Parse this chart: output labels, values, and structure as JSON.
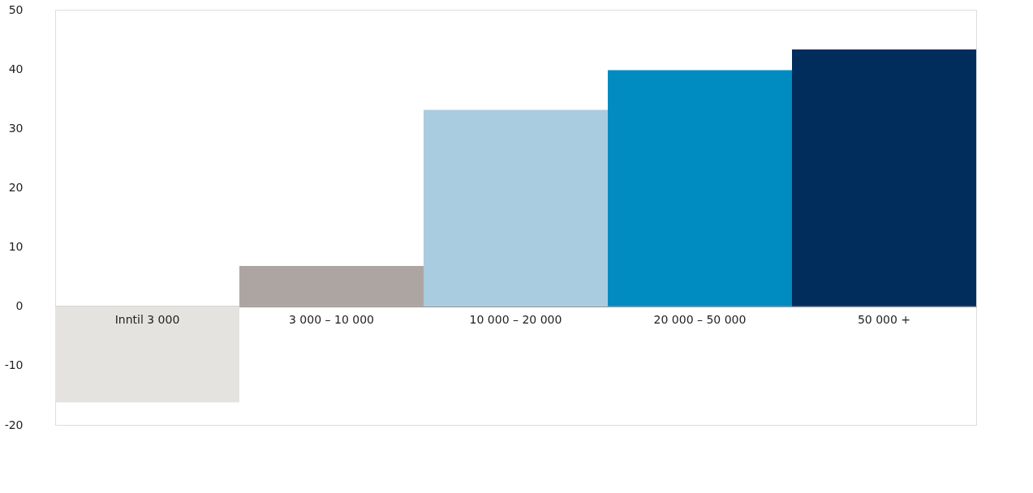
{
  "chart_data": {
    "type": "bar",
    "categories": [
      "Inntil 3 000",
      "3 000 – 10 000",
      "10 000 – 20 000",
      "20 000 – 50 000",
      "50 000 +"
    ],
    "values": [
      -16.2,
      6.8,
      33.1,
      39.8,
      43.3
    ],
    "colors": [
      "#e4e3df",
      "#ada5a2",
      "#a9cce0",
      "#008bc1",
      "#002d5c"
    ],
    "ylim": [
      -20,
      50
    ],
    "yticks": [
      -20,
      -10,
      0,
      10,
      20,
      30,
      40,
      50
    ],
    "grid": false,
    "legend": false
  }
}
